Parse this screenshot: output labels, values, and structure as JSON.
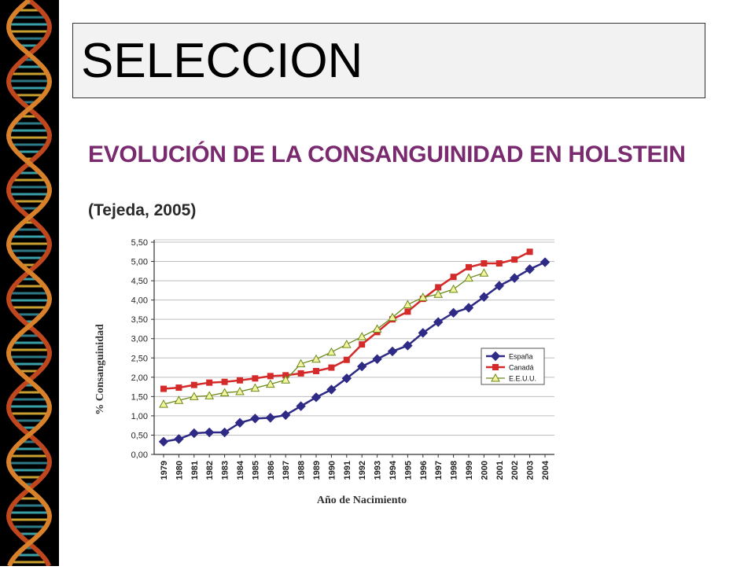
{
  "slide": {
    "title": "SELECCION",
    "accent_color": "#7a2a6e"
  },
  "chart_data": {
    "type": "line",
    "title": "EVOLUCIÓN DE LA CONSANGUINIDAD EN HOLSTEIN",
    "subtitle": "(Tejeda, 2005)",
    "xlabel": "Año de Nacimiento",
    "ylabel": "% Consanguinidad",
    "ylim": [
      0,
      5.5
    ],
    "yticks": [
      "0,00",
      "0,50",
      "1,00",
      "1,50",
      "2,00",
      "2,50",
      "3,00",
      "3,50",
      "4,00",
      "4,50",
      "5,00",
      "5,50"
    ],
    "x": [
      "1979",
      "1980",
      "1981",
      "1982",
      "1983",
      "1984",
      "1985",
      "1986",
      "1987",
      "1988",
      "1989",
      "1990",
      "1991",
      "1992",
      "1993",
      "1994",
      "1995",
      "1996",
      "1997",
      "1998",
      "1999",
      "2000",
      "2001",
      "2002",
      "2003",
      "2004"
    ],
    "grid": true,
    "legend_position": "right",
    "series": [
      {
        "name": "España",
        "color": "#2e2a86",
        "marker": "diamond",
        "values": [
          0.33,
          0.4,
          0.55,
          0.57,
          0.57,
          0.82,
          0.93,
          0.95,
          1.02,
          1.25,
          1.48,
          1.68,
          1.97,
          2.28,
          2.47,
          2.67,
          2.82,
          3.15,
          3.43,
          3.67,
          3.8,
          4.08,
          4.37,
          4.57,
          4.8,
          4.98
        ]
      },
      {
        "name": "Canadá",
        "color": "#d42a2a",
        "marker": "square",
        "values": [
          1.7,
          1.73,
          1.8,
          1.86,
          1.88,
          1.92,
          1.97,
          2.03,
          2.05,
          2.1,
          2.16,
          2.25,
          2.45,
          2.85,
          3.17,
          3.5,
          3.7,
          4.03,
          4.33,
          4.6,
          4.85,
          4.95,
          4.95,
          5.05,
          5.25,
          null
        ]
      },
      {
        "name": "E.E.U.U.",
        "color": "#6a8a1a",
        "marker": "triangle",
        "values": [
          1.3,
          1.4,
          1.5,
          1.52,
          1.6,
          1.63,
          1.72,
          1.82,
          1.93,
          2.35,
          2.47,
          2.65,
          2.85,
          3.05,
          3.25,
          3.55,
          3.88,
          4.07,
          4.15,
          4.28,
          4.57,
          4.7,
          null,
          null,
          null,
          null
        ]
      }
    ]
  }
}
